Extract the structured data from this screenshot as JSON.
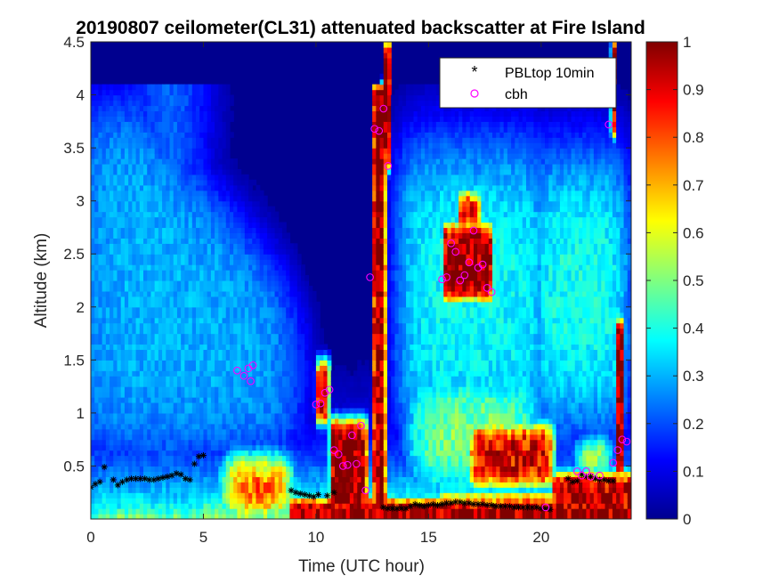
{
  "chart_data": {
    "type": "heatmap",
    "title": "20190807 ceilometer(CL31) attenuated backscatter at Fire Island",
    "xlabel": "Time (UTC hour)",
    "ylabel": "Altitude (km)",
    "xlim": [
      0,
      24
    ],
    "ylim": [
      0,
      4.5
    ],
    "x_ticks": [
      0,
      5,
      10,
      15,
      20
    ],
    "x_tick_labels": [
      "0",
      "5",
      "10",
      "15",
      "20"
    ],
    "y_ticks": [
      0.5,
      1,
      1.5,
      2,
      2.5,
      3,
      3.5,
      4,
      4.5
    ],
    "y_tick_labels": [
      "0.5",
      "1",
      "1.5",
      "2",
      "2.5",
      "3",
      "3.5",
      "4",
      "4.5"
    ],
    "colorbar": {
      "colormap": "jet",
      "range": [
        0,
        1
      ],
      "ticks": [
        0,
        0.1,
        0.2,
        0.3,
        0.4,
        0.5,
        0.6,
        0.7,
        0.8,
        0.9,
        1
      ],
      "tick_labels": [
        "0",
        "0.1",
        "0.2",
        "0.3",
        "0.4",
        "0.5",
        "0.6",
        "0.7",
        "0.8",
        "0.9",
        "1"
      ]
    },
    "legend": {
      "placement": "top-right",
      "entries": [
        "PBLtop 10min",
        "cbh"
      ]
    },
    "series": [
      {
        "name": "PBLtop 10min",
        "marker": "asterisk",
        "color": "#000000",
        "x": [
          0,
          0.2,
          0.4,
          0.6,
          1.0,
          1.2,
          1.4,
          1.6,
          1.8,
          2.0,
          2.2,
          2.4,
          2.6,
          2.8,
          3.0,
          3.2,
          3.4,
          3.6,
          3.8,
          4.0,
          4.2,
          4.4,
          4.6,
          4.8,
          5.0,
          8.9,
          9.1,
          9.3,
          9.5,
          9.7,
          9.9,
          10.1,
          10.5,
          10.8,
          13.0,
          13.2,
          13.4,
          13.6,
          13.8,
          14.0,
          14.2,
          14.4,
          14.6,
          14.8,
          15.0,
          15.2,
          15.4,
          15.6,
          15.8,
          16.0,
          16.2,
          16.4,
          16.6,
          16.8,
          17.0,
          17.2,
          17.4,
          17.6,
          17.8,
          18.0,
          18.2,
          18.4,
          18.6,
          18.8,
          19.0,
          19.2,
          19.4,
          19.6,
          19.8,
          20.0,
          20.2,
          20.4,
          21.2,
          21.4,
          21.6,
          21.8,
          22.0,
          22.2,
          22.4,
          22.6,
          22.8,
          23.0,
          23.2
        ],
        "y": [
          0.3,
          0.33,
          0.35,
          0.49,
          0.37,
          0.32,
          0.35,
          0.37,
          0.38,
          0.38,
          0.38,
          0.38,
          0.37,
          0.37,
          0.38,
          0.39,
          0.4,
          0.41,
          0.43,
          0.42,
          0.38,
          0.37,
          0.52,
          0.59,
          0.6,
          0.27,
          0.25,
          0.24,
          0.23,
          0.22,
          0.21,
          0.23,
          0.22,
          0.25,
          0.11,
          0.1,
          0.1,
          0.1,
          0.1,
          0.1,
          0.12,
          0.14,
          0.13,
          0.12,
          0.13,
          0.14,
          0.13,
          0.14,
          0.15,
          0.15,
          0.16,
          0.16,
          0.15,
          0.15,
          0.14,
          0.14,
          0.14,
          0.13,
          0.13,
          0.12,
          0.12,
          0.12,
          0.12,
          0.11,
          0.11,
          0.11,
          0.11,
          0.11,
          0.11,
          0.1,
          0.1,
          0.09,
          0.38,
          0.35,
          0.36,
          0.42,
          0.4,
          0.4,
          0.38,
          0.37,
          0.37,
          0.36,
          0.36
        ]
      },
      {
        "name": "cbh",
        "marker": "circle",
        "color": "#ff00ff",
        "x": [
          6.5,
          6.8,
          7.0,
          7.1,
          7.2,
          10.0,
          10.2,
          10.4,
          10.6,
          10.8,
          11.0,
          11.2,
          11.4,
          11.6,
          11.8,
          12.0,
          12.2,
          12.4,
          12.6,
          12.8,
          13.0,
          13.2,
          15.6,
          15.8,
          16.0,
          16.2,
          16.4,
          16.6,
          16.8,
          17.0,
          17.2,
          17.4,
          17.6,
          17.8,
          20.2,
          21.6,
          21.8,
          22.0,
          22.2,
          22.6,
          23.0,
          23.2,
          23.4,
          23.6,
          23.8
        ],
        "y": [
          1.4,
          1.35,
          1.42,
          1.3,
          1.45,
          1.08,
          1.09,
          1.19,
          1.22,
          0.65,
          0.61,
          0.5,
          0.51,
          0.79,
          0.52,
          0.88,
          0.27,
          2.28,
          3.68,
          3.66,
          3.87,
          3.33,
          2.26,
          2.28,
          2.6,
          2.52,
          2.25,
          2.3,
          2.42,
          2.72,
          2.37,
          2.4,
          2.18,
          2.14,
          0.11,
          0.45,
          0.41,
          0.45,
          0.4,
          0.41,
          3.72,
          0.53,
          0.65,
          0.75,
          0.73
        ]
      }
    ]
  }
}
